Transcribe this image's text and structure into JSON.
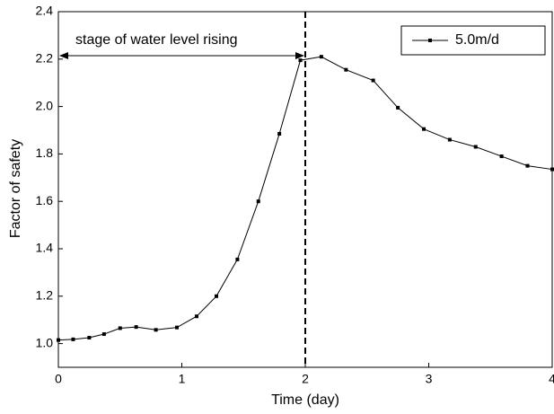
{
  "chart_data": {
    "type": "line",
    "xlabel": "Time (day)",
    "ylabel": "Factor of safety",
    "annotation": "stage of water level rising",
    "vline_x": 2,
    "x": [
      0,
      0.12,
      0.25,
      0.37,
      0.5,
      0.63,
      0.79,
      0.96,
      1.12,
      1.28,
      1.45,
      1.62,
      1.79,
      1.96,
      2.13,
      2.33,
      2.55,
      2.75,
      2.96,
      3.17,
      3.38,
      3.59,
      3.8,
      4.0
    ],
    "series": [
      {
        "name": "5.0m/d",
        "color": "#000000",
        "values": [
          1.015,
          1.018,
          1.025,
          1.04,
          1.065,
          1.07,
          1.058,
          1.068,
          1.115,
          1.2,
          1.355,
          1.6,
          1.885,
          2.195,
          2.21,
          2.155,
          2.11,
          1.995,
          1.905,
          1.86,
          1.83,
          1.79,
          1.75,
          1.735
        ]
      }
    ],
    "xlim": [
      0,
      4
    ],
    "xticks": [
      0,
      1,
      2,
      3,
      4
    ],
    "ylim": [
      0.9,
      2.4
    ],
    "yticks": [
      {
        "value": 1.0,
        "label": "1.0"
      },
      {
        "value": 1.2,
        "label": "1.2"
      },
      {
        "value": 1.4,
        "label": "1.4"
      },
      {
        "value": 1.6,
        "label": "1.6"
      },
      {
        "value": 1.8,
        "label": "1.8"
      },
      {
        "value": 2.0,
        "label": "2.0"
      },
      {
        "value": 2.2,
        "label": "2.2"
      },
      {
        "value": 2.4,
        "label": "2.4"
      }
    ],
    "legend": "top-right"
  }
}
